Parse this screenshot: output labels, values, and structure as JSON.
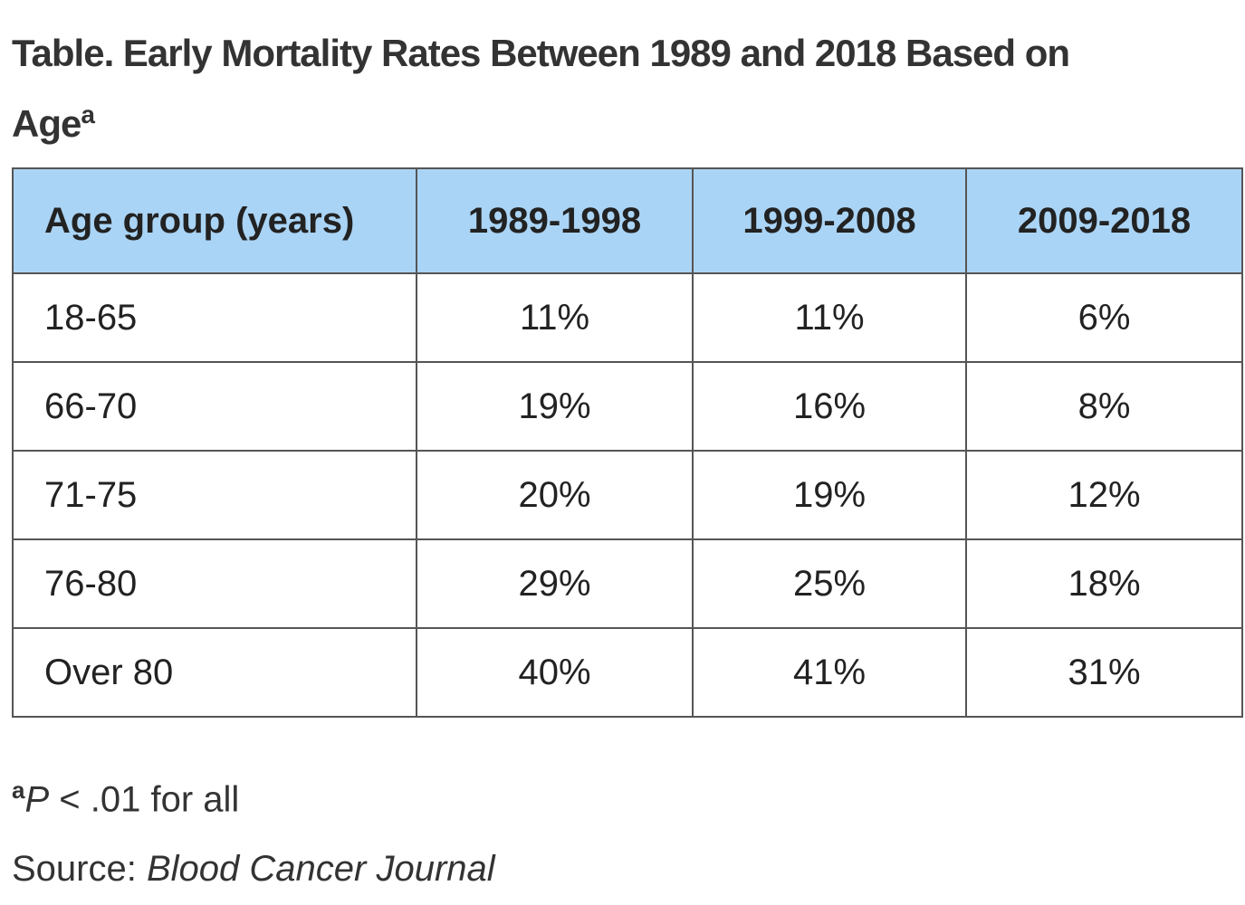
{
  "title": {
    "text": "Table. Early Mortality Rates Between 1989 and 2018 Based on Age",
    "superscript": "a"
  },
  "table": {
    "header": [
      "Age group (years)",
      "1989-1998",
      "1999-2008",
      "2009-2018"
    ],
    "rows": [
      [
        "18-65",
        "11%",
        "11%",
        "6%"
      ],
      [
        "66-70",
        "19%",
        "16%",
        "8%"
      ],
      [
        "71-75",
        "20%",
        "19%",
        "12%"
      ],
      [
        "76-80",
        "29%",
        "25%",
        "18%"
      ],
      [
        "Over 80",
        "40%",
        "41%",
        "31%"
      ]
    ]
  },
  "footnote": {
    "marker": "a",
    "symbol": "P",
    "text": " < .01 for all"
  },
  "source": {
    "label": "Source: ",
    "name": "Blood Cancer Journal"
  }
}
